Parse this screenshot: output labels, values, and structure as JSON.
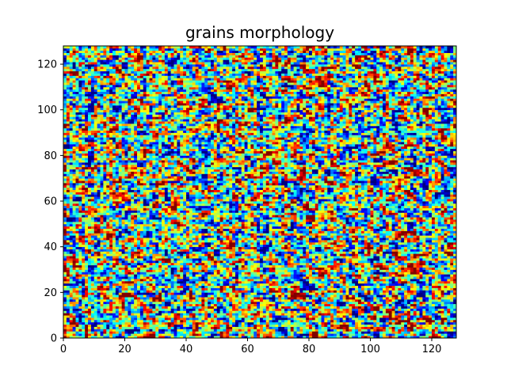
{
  "chart_data": {
    "type": "heatmap",
    "title": "grains morphology",
    "xlabel": "",
    "ylabel": "",
    "xlim": [
      0,
      128
    ],
    "ylim": [
      0,
      128
    ],
    "grid": false,
    "colormap": "jet",
    "resolution": [
      128,
      128
    ],
    "value_range": [
      0,
      1
    ],
    "description_pattern": "random grain map",
    "xticks": [
      0,
      20,
      40,
      60,
      80,
      100,
      120
    ],
    "yticks": [
      0,
      20,
      40,
      60,
      80,
      100,
      120
    ],
    "jet_colors": [
      "#00007f",
      "#0000ff",
      "#007fff",
      "#00ffff",
      "#7fff7f",
      "#ffff00",
      "#ff7f00",
      "#ff0000",
      "#7f0000"
    ]
  }
}
